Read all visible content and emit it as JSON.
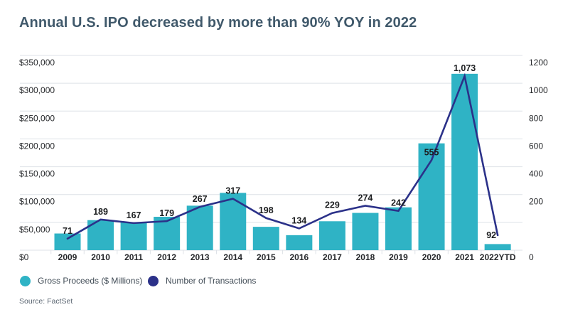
{
  "title": "Annual U.S. IPO decreased by more than 90% YOY in 2022",
  "source": "Source: FactSet",
  "colors": {
    "bar": "#2fb3c5",
    "line": "#2b3189",
    "grid": "#dee2e7",
    "axis_text": "#26282b",
    "data_label_text": "#1c1e20",
    "title_text": "#40596b",
    "legend_text": "#424d57",
    "source_text": "#596470"
  },
  "legend": [
    {
      "label": "Gross Proceeds ($ Millions)",
      "color": "#2fb3c5",
      "icon": "teal-circle"
    },
    {
      "label": "Number of Transactions",
      "color": "#2b3189",
      "icon": "navy-circle"
    }
  ],
  "chart_data": {
    "type": "bar+line combo",
    "title": "Annual U.S. IPO decreased by more than 90% YOY in 2022",
    "categories": [
      "2009",
      "2010",
      "2011",
      "2012",
      "2013",
      "2014",
      "2015",
      "2016",
      "2017",
      "2018",
      "2019",
      "2020",
      "2021",
      "2022YTD"
    ],
    "series": [
      {
        "name": "Gross Proceeds ($ Millions)",
        "type": "bar",
        "axis": "left",
        "values": [
          30000,
          54000,
          50000,
          60000,
          80000,
          103000,
          42000,
          27000,
          52000,
          67000,
          77000,
          192000,
          317000,
          11000
        ]
      },
      {
        "name": "Number of Transactions",
        "type": "line",
        "axis": "right",
        "values": [
          71,
          189,
          167,
          179,
          267,
          317,
          198,
          134,
          229,
          274,
          242,
          555,
          1073,
          92
        ],
        "labels": [
          "71",
          "189",
          "167",
          "179",
          "267",
          "317",
          "198",
          "134",
          "229",
          "274",
          "242",
          "555",
          "1,073",
          "92"
        ]
      }
    ],
    "left_axis": {
      "min": 0,
      "max": 350000,
      "ticks": [
        "$350,000",
        "$300,000",
        "$250,000",
        "$200,000",
        "$150,000",
        "$100,000",
        "$50,000",
        "$0"
      ]
    },
    "right_axis": {
      "min": 0,
      "max": 1200,
      "ticks": [
        "1200",
        "1000",
        "800",
        "600",
        "400",
        "200",
        "0"
      ]
    },
    "grid": true,
    "legend_position": "bottom"
  }
}
